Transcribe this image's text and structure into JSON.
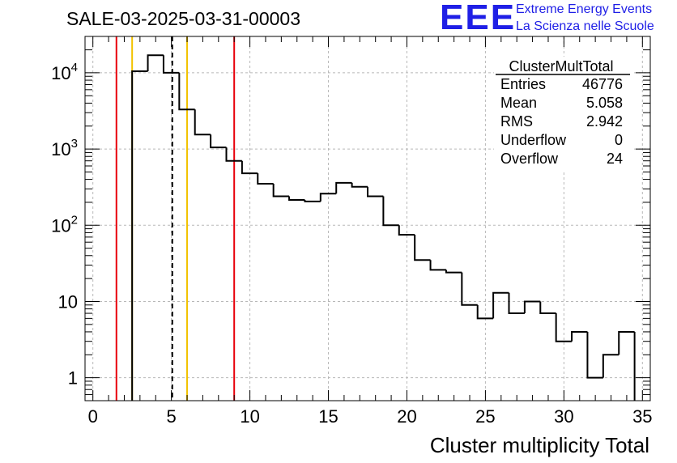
{
  "title": "SALE-03-2025-03-31-00003",
  "logo": {
    "letters": "EEE",
    "line1": "Extreme Energy Events",
    "line2": "La Scienza nelle Scuole",
    "color": "#1f1fe6"
  },
  "stats": {
    "name": "ClusterMultTotal",
    "rows": [
      {
        "label": "Entries",
        "value": "46776"
      },
      {
        "label": "Mean",
        "value": "5.058"
      },
      {
        "label": "RMS",
        "value": "2.942"
      },
      {
        "label": "Underflow",
        "value": "0"
      },
      {
        "label": "Overflow",
        "value": "24"
      }
    ]
  },
  "chart_data": {
    "type": "histogram",
    "title": "SALE-03-2025-03-31-00003",
    "xlabel": "Cluster multiplicity Total",
    "ylabel": "",
    "xlim": [
      -0.5,
      35.5
    ],
    "ylim": [
      0.5,
      30000
    ],
    "yscale": "log",
    "grid": true,
    "bin_width": 1,
    "bins_x_low": [
      2.5,
      3.5,
      4.5,
      5.5,
      6.5,
      7.5,
      8.5,
      9.5,
      10.5,
      11.5,
      12.5,
      13.5,
      14.5,
      15.5,
      16.5,
      17.5,
      18.5,
      19.5,
      20.5,
      21.5,
      22.5,
      23.5,
      24.5,
      25.5,
      26.5,
      27.5,
      28.5,
      29.5,
      30.5,
      31.5,
      32.5,
      33.5
    ],
    "values": [
      10500,
      17000,
      10000,
      3300,
      1550,
      1050,
      700,
      480,
      350,
      240,
      215,
      205,
      260,
      360,
      320,
      240,
      100,
      75,
      35,
      26,
      24,
      9,
      6,
      13,
      7,
      10,
      7,
      3,
      4,
      1,
      2,
      4
    ],
    "x_ticks": [
      0,
      5,
      10,
      15,
      20,
      25,
      30,
      35
    ],
    "x_tick_labels": [
      "0",
      "5",
      "10",
      "15",
      "20",
      "25",
      "30",
      "35"
    ],
    "y_ticks": [
      1,
      10,
      100,
      1000,
      10000
    ],
    "y_tick_labels": [
      {
        "base": "1",
        "exp": ""
      },
      {
        "base": "10",
        "exp": ""
      },
      {
        "base": "10",
        "exp": "2"
      },
      {
        "base": "10",
        "exp": "3"
      },
      {
        "base": "10",
        "exp": "4"
      }
    ],
    "markers": [
      {
        "x": 1.5,
        "color": "#e8000b",
        "style": "solid"
      },
      {
        "x": 2.5,
        "color": "#f2c200",
        "style": "solid"
      },
      {
        "x": 5.058,
        "color": "#000000",
        "style": "dashed"
      },
      {
        "x": 6.0,
        "color": "#f2c200",
        "style": "solid"
      },
      {
        "x": 9.0,
        "color": "#e8000b",
        "style": "solid"
      }
    ]
  }
}
